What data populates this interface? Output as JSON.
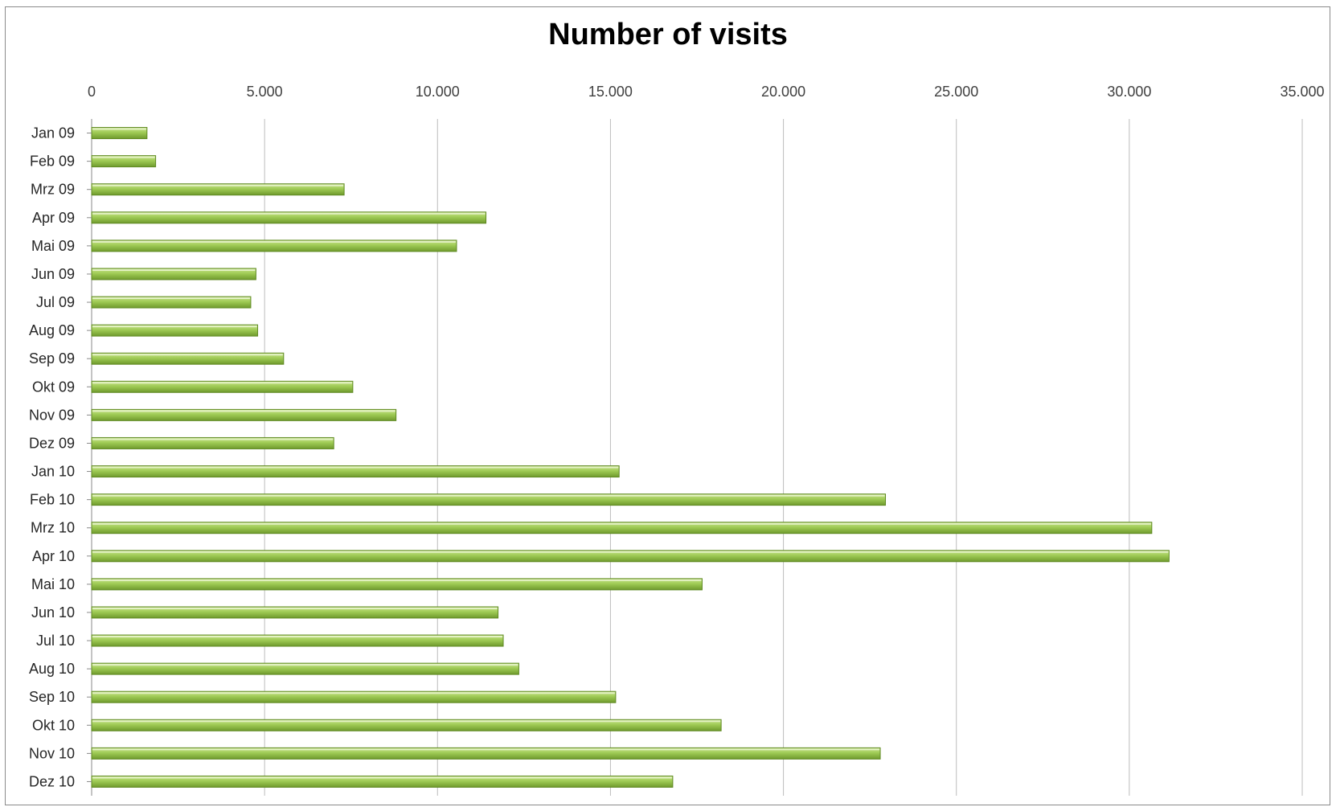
{
  "chart_data": {
    "type": "bar",
    "orientation": "horizontal",
    "title": "Number of visits",
    "xlabel": "",
    "ylabel": "",
    "xlim": [
      0,
      35000
    ],
    "x_ticks": [
      0,
      5000,
      10000,
      15000,
      20000,
      25000,
      30000,
      35000
    ],
    "x_tick_labels": [
      "0",
      "5.000",
      "10.000",
      "15.000",
      "20.000",
      "25.000",
      "30.000",
      "35.000"
    ],
    "x_axis_position": "top",
    "grid": true,
    "legend": "none",
    "bar_color": "#92c04a",
    "bar_edge_color": "#5f8a22",
    "categories": [
      "Jan 09",
      "Feb 09",
      "Mrz 09",
      "Apr 09",
      "Mai 09",
      "Jun 09",
      "Jul 09",
      "Aug 09",
      "Sep 09",
      "Okt 09",
      "Nov 09",
      "Dez 09",
      "Jan 10",
      "Feb 10",
      "Mrz 10",
      "Apr 10",
      "Mai 10",
      "Jun 10",
      "Jul 10",
      "Aug 10",
      "Sep 10",
      "Okt 10",
      "Nov 10",
      "Dez 10"
    ],
    "values": [
      1600,
      1850,
      7300,
      11400,
      10550,
      4750,
      4600,
      4800,
      5550,
      7550,
      8800,
      7000,
      15250,
      22950,
      30650,
      31150,
      17650,
      11750,
      11900,
      12350,
      15150,
      18200,
      22800,
      16800
    ]
  }
}
